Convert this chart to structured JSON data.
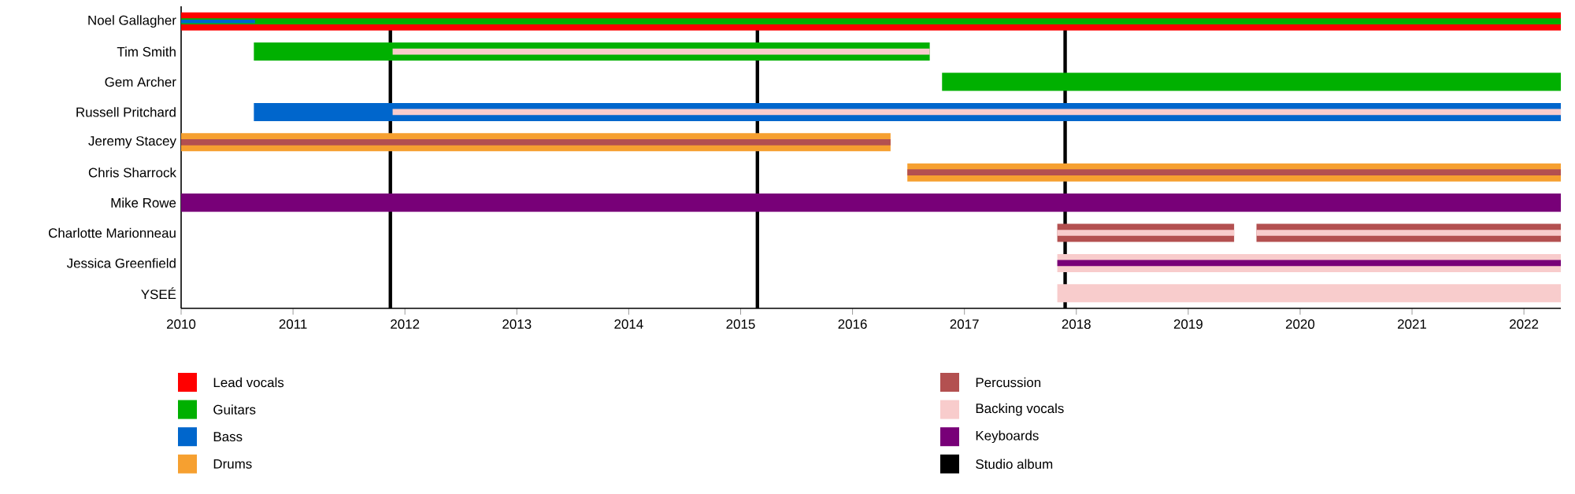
{
  "chart_data": {
    "type": "bar",
    "orientation": "horizontal",
    "categories": [
      "Noel Gallagher",
      "Tim Smith",
      "Gem Archer",
      "Russell Pritchard",
      "Jeremy Stacey",
      "Chris Sharrock",
      "Mike Rowe",
      "Charlotte Marionneau",
      "Jessica Greenfield",
      "YSEÉ"
    ],
    "series": [
      {
        "name": "Lead vocals",
        "color": "#ff0000",
        "base": [
          2010,
          null,
          null,
          null,
          null,
          null,
          null,
          null,
          null,
          null
        ],
        "values": [
          12.33,
          null,
          null,
          null,
          null,
          null,
          null,
          null,
          null,
          null
        ]
      },
      {
        "name": "Guitars",
        "color": "#00b000",
        "base": [
          2010,
          2010.65,
          2016.8,
          null,
          null,
          null,
          null,
          null,
          null,
          null
        ],
        "values": [
          12.33,
          6.04,
          5.53,
          null,
          null,
          null,
          null,
          null,
          null,
          null
        ]
      },
      {
        "name": "Bass",
        "color": "#0066cc",
        "base": [
          2010,
          null,
          null,
          2010.65,
          null,
          null,
          null,
          null,
          null,
          null
        ],
        "values": [
          0.66,
          null,
          null,
          11.68,
          null,
          null,
          null,
          null,
          null,
          null
        ]
      },
      {
        "name": "Drums",
        "color": "#f6a030",
        "base": [
          null,
          null,
          null,
          null,
          2010,
          2016.49,
          null,
          null,
          null,
          null
        ],
        "values": [
          null,
          null,
          null,
          null,
          6.34,
          5.84,
          null,
          null,
          null,
          null
        ]
      },
      {
        "name": "Percussion",
        "color": "#b35050",
        "base": [
          null,
          null,
          null,
          null,
          2010,
          2016.49,
          null,
          2017.83,
          null,
          null
        ],
        "values": [
          null,
          null,
          null,
          null,
          6.34,
          5.84,
          null,
          1.58,
          null,
          null
        ]
      },
      {
        "name": "Backing vocals",
        "color": "#f8cccc",
        "base": [
          null,
          2011.89,
          null,
          2011.89,
          null,
          null,
          null,
          2017.83,
          2017.83,
          2017.83
        ],
        "values": [
          null,
          4.8,
          null,
          10.44,
          null,
          null,
          null,
          1.58,
          4.5,
          4.5
        ]
      },
      {
        "name": "Keyboards",
        "color": "#780078",
        "base": [
          null,
          null,
          null,
          null,
          null,
          null,
          2010,
          null,
          2017.83,
          null
        ],
        "values": [
          null,
          null,
          null,
          null,
          null,
          null,
          12.33,
          null,
          4.5,
          null
        ]
      },
      {
        "color": "#b35050",
        "base": [
          null,
          null,
          null,
          null,
          null,
          null,
          null,
          2019.61,
          null,
          null
        ],
        "values": [
          null,
          null,
          null,
          null,
          null,
          null,
          null,
          2.72,
          null,
          null
        ]
      },
      {
        "color": "#f8cccc",
        "base": [
          null,
          null,
          null,
          null,
          null,
          null,
          null,
          2019.61,
          null,
          null
        ],
        "values": [
          null,
          null,
          null,
          null,
          null,
          null,
          null,
          2.72,
          null,
          null
        ]
      }
    ],
    "ref_lines": [
      {
        "axis": "x",
        "value": 2011.87,
        "label": "Studio album",
        "color": "#000000"
      },
      {
        "axis": "x",
        "value": 2015.15,
        "color": "#000000"
      },
      {
        "axis": "x",
        "value": 2017.9,
        "color": "#000000"
      }
    ],
    "xlim": [
      2010,
      2022.33
    ],
    "xticks": [
      2010,
      2011,
      2012,
      2013,
      2014,
      2015,
      2016,
      2017,
      2018,
      2019,
      2020,
      2021,
      2022
    ],
    "legend": "bottom"
  }
}
